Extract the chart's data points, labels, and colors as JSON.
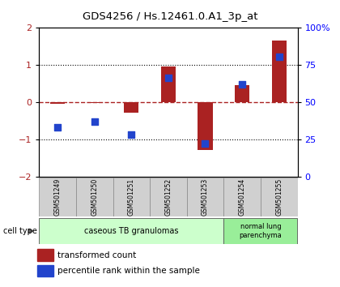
{
  "title": "GDS4256 / Hs.12461.0.A1_3p_at",
  "categories": [
    "GSM501249",
    "GSM501250",
    "GSM501251",
    "GSM501252",
    "GSM501253",
    "GSM501254",
    "GSM501255"
  ],
  "transformed_count": [
    -0.05,
    -0.02,
    -0.3,
    0.95,
    -1.3,
    0.45,
    1.65
  ],
  "percentile_rank": [
    33,
    37,
    28,
    66,
    22,
    62,
    80
  ],
  "bar_color": "#aa2222",
  "dot_color": "#2244cc",
  "ylim_left": [
    -2,
    2
  ],
  "ylim_right": [
    0,
    100
  ],
  "yticks_left": [
    -2,
    -1,
    0,
    1,
    2
  ],
  "yticks_right": [
    0,
    25,
    50,
    75,
    100
  ],
  "ytick_labels_right": [
    "0",
    "25",
    "50",
    "75",
    "100%"
  ],
  "dotted_lines": [
    1,
    -1
  ],
  "dashed_line_y": 0,
  "group1_label": "caseous TB granulomas",
  "group2_label": "normal lung\nparenchyma",
  "group1_color": "#ccffcc",
  "group2_color": "#99ee99",
  "cell_type_label": "cell type",
  "legend_bar_label": "transformed count",
  "legend_dot_label": "percentile rank within the sample",
  "bg_color": "#ffffff",
  "tick_box_color": "#d0d0d0"
}
